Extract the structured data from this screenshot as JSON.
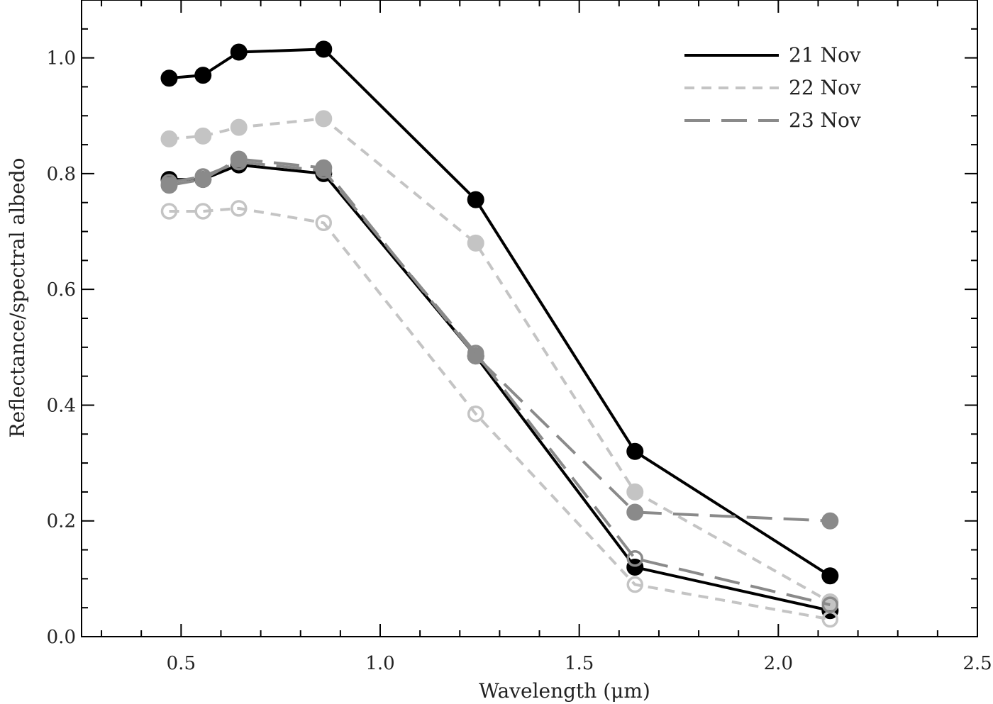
{
  "chart_data": {
    "type": "line",
    "xlabel": "Wavelength (μm)",
    "ylabel": "Reflectance/spectral albedo",
    "xlim": [
      0.25,
      2.5
    ],
    "ylim": [
      0.0,
      1.1
    ],
    "xticks": [
      0.5,
      1.0,
      1.5,
      2.0,
      2.5
    ],
    "xtick_labels": [
      "0.5",
      "1.0",
      "1.5",
      "2.0",
      "2.5"
    ],
    "yticks": [
      0.0,
      0.2,
      0.4,
      0.6,
      0.8,
      1.0
    ],
    "ytick_labels": [
      "0.0",
      "0.2",
      "0.4",
      "0.6",
      "0.8",
      "1.0"
    ],
    "grid": false,
    "legend_position": "top-right",
    "x": [
      0.47,
      0.555,
      0.645,
      0.858,
      1.24,
      1.64,
      2.13
    ],
    "series": [
      {
        "name": "21 Nov",
        "color": "#000000",
        "dash": "solid",
        "marker": "filled",
        "values": [
          0.965,
          0.97,
          1.01,
          1.015,
          0.755,
          0.32,
          0.105
        ]
      },
      {
        "color": "#000000",
        "dash": "solid",
        "marker": "filled",
        "values": [
          0.79,
          0.79,
          0.815,
          0.8,
          0.485,
          0.12,
          0.045
        ]
      },
      {
        "name": "22 Nov",
        "color": "#c4c4c4",
        "dash": "short",
        "marker": "filled",
        "values": [
          0.86,
          0.865,
          0.88,
          0.895,
          0.68,
          0.25,
          0.06
        ]
      },
      {
        "color": "#c4c4c4",
        "dash": "short",
        "marker": "open",
        "values": [
          0.735,
          0.735,
          0.74,
          0.715,
          0.385,
          0.09,
          0.03
        ]
      },
      {
        "name": "23 Nov",
        "color": "#8a8a8a",
        "dash": "long",
        "marker": "filled",
        "values": [
          0.78,
          0.79,
          0.825,
          0.81,
          0.485,
          0.215,
          0.2
        ]
      },
      {
        "color": "#8a8a8a",
        "dash": "long",
        "marker": "open",
        "values": [
          0.785,
          0.795,
          0.82,
          0.805,
          0.49,
          0.135,
          0.055
        ]
      }
    ]
  }
}
